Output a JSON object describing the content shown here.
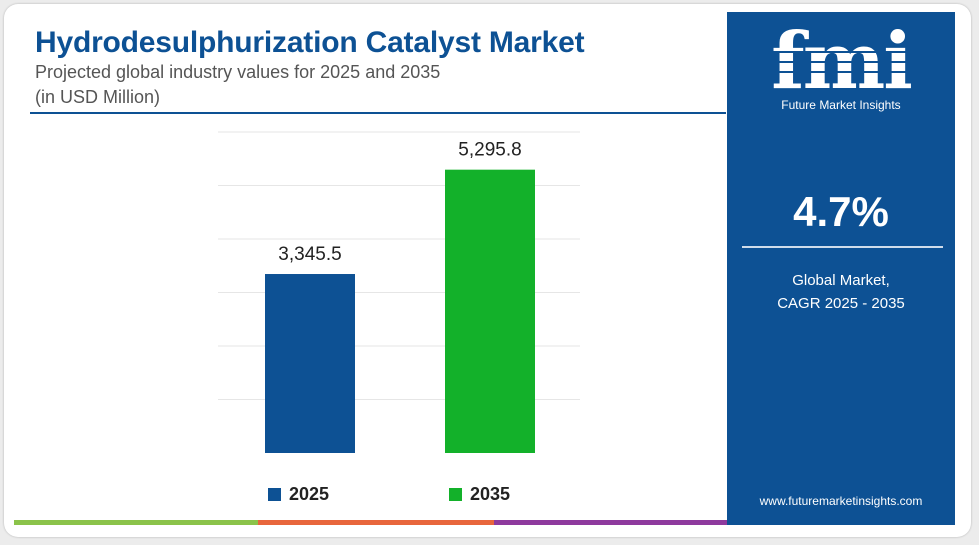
{
  "header": {
    "title": "Hydrodesulphurization Catalyst Market",
    "subtitle": "Projected global industry values for 2025 and 2035",
    "unit": "(in USD Million)"
  },
  "chart_data": {
    "type": "bar",
    "categories": [
      "2025",
      "2035"
    ],
    "values": [
      3345.5,
      5295.8
    ],
    "value_labels": [
      "3,345.5",
      "5,295.8"
    ],
    "colors": [
      "#0d5194",
      "#13b12a"
    ],
    "ylim": [
      0,
      6000
    ],
    "grid": true,
    "legend": "bottom",
    "legend_entries": [
      {
        "label": "2025",
        "color": "#0d5194"
      },
      {
        "label": "2035",
        "color": "#13b12a"
      }
    ]
  },
  "side_panel": {
    "logo_text": "fmi",
    "logo_tagline": "Future Market Insights",
    "cagr_value": "4.7%",
    "cagr_label_line1": "Global Market,",
    "cagr_label_line2": "CAGR 2025 - 2035",
    "website": "www.futuremarketinsights.com",
    "background": "#0d5194"
  },
  "bottom_bar_colors": [
    "#8bc34a",
    "#e8663c",
    "#8e3a9d"
  ]
}
